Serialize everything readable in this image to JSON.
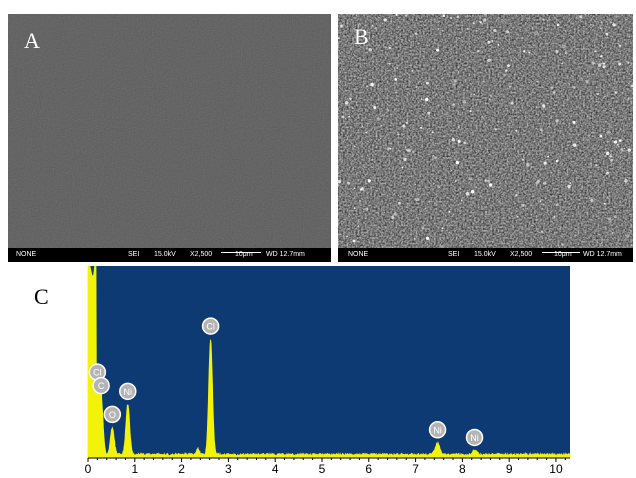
{
  "panels": {
    "a": {
      "letter": "A",
      "info": {
        "left": "NONE",
        "mode": "SEI",
        "kv": "15.0kV",
        "mag": "X2,500",
        "scale": "10μm",
        "wd": "WD 12.7mm"
      }
    },
    "b": {
      "letter": "B",
      "info": {
        "left": "NONE",
        "mode": "SEI",
        "kv": "15.0kV",
        "mag": "X2,500",
        "scale": "10μm",
        "wd": "WD 12.7mm"
      }
    },
    "c": {
      "letter": "C"
    }
  },
  "colors": {
    "plot_bg": "#0d3a73",
    "spectrum": "#f2f20a",
    "marker_fill": "#b4b4b4"
  },
  "chart_data": {
    "type": "line",
    "x_ticks": [
      "0",
      "1",
      "2",
      "3",
      "4",
      "5",
      "6",
      "7",
      "8",
      "9",
      "10"
    ],
    "xlim": [
      0,
      10.3
    ],
    "ylim": [
      0,
      1
    ],
    "peaks": [
      {
        "label": "Cl",
        "x": 0.2,
        "y": 0.36
      },
      {
        "label": "C",
        "x": 0.28,
        "y": 0.29
      },
      {
        "label": "O",
        "x": 0.52,
        "y": 0.14
      },
      {
        "label": "Ni",
        "x": 0.85,
        "y": 0.26
      },
      {
        "label": "Cl",
        "x": 2.62,
        "y": 0.6
      },
      {
        "label": "Ni",
        "x": 7.47,
        "y": 0.06
      },
      {
        "label": "Ni",
        "x": 8.26,
        "y": 0.02
      }
    ]
  }
}
